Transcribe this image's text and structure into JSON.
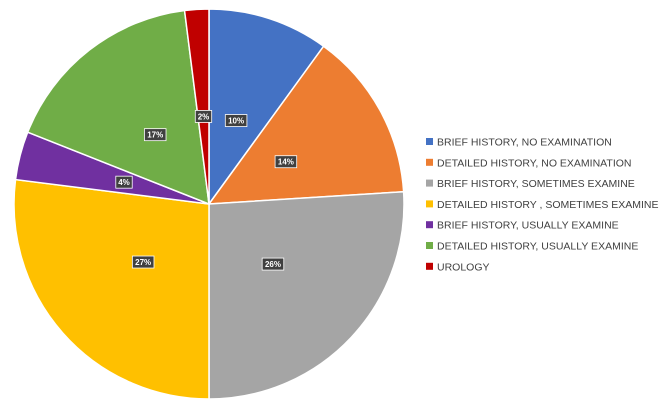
{
  "chart_data": {
    "type": "pie",
    "title": "",
    "legend_position": "right",
    "start_angle_deg": 0,
    "direction": "clockwise",
    "slices": [
      {
        "name": "BRIEF HISTORY, NO EXAMINATION",
        "value": 10,
        "label": "10%",
        "color": "#4472C4"
      },
      {
        "name": "DETAILED HISTORY, NO EXAMINATION",
        "value": 14,
        "label": "14%",
        "color": "#ED7D31"
      },
      {
        "name": "BRIEF HISTORY, SOMETIMES EXAMINE",
        "value": 26,
        "label": "26%",
        "color": "#A5A5A5"
      },
      {
        "name": "DETAILED HISTORY , SOMETIMES EXAMINE",
        "value": 27,
        "label": "27%",
        "color": "#FFC000"
      },
      {
        "name": "BRIEF HISTORY, USUALLY EXAMINE",
        "value": 4,
        "label": "4%",
        "color": "#7030A0"
      },
      {
        "name": "DETAILED HISTORY, USUALLY EXAMINE",
        "value": 17,
        "label": "17%",
        "color": "#70AD47"
      },
      {
        "name": "UROLOGY",
        "value": 2,
        "label": "2%",
        "color": "#C00000"
      }
    ]
  }
}
